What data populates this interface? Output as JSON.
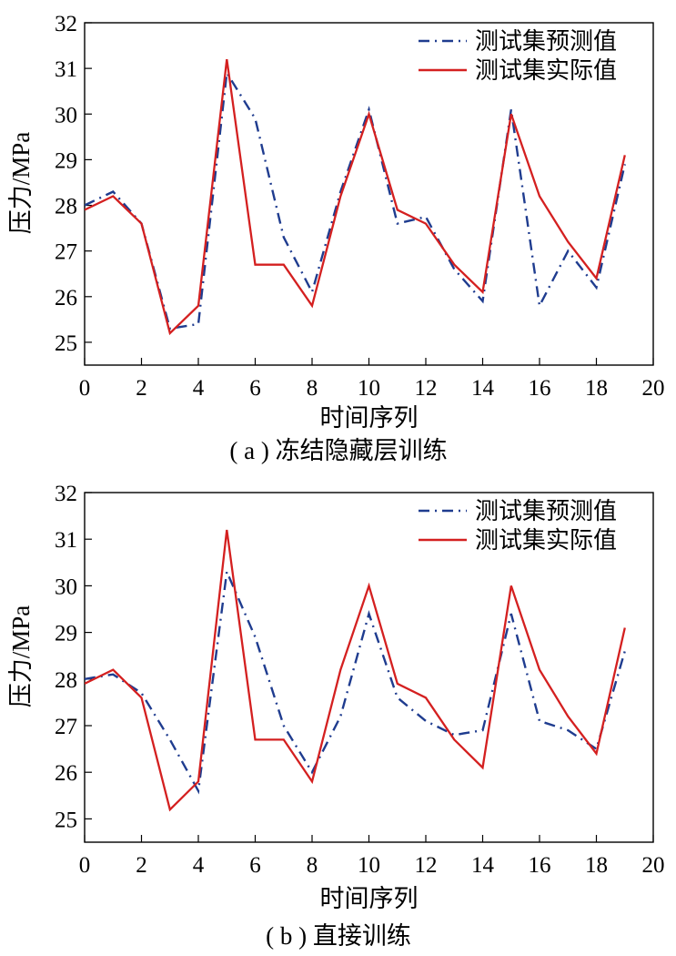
{
  "chart_data": [
    {
      "type": "line",
      "caption": "( a ) 冻结隐藏层训练",
      "xlabel": "时间序列",
      "ylabel": "压力/MPa",
      "xlim": [
        0,
        20
      ],
      "ylim": [
        24.5,
        32
      ],
      "xticks": [
        0,
        2,
        4,
        6,
        8,
        10,
        12,
        14,
        16,
        18,
        20
      ],
      "yticks": [
        25,
        26,
        27,
        28,
        29,
        30,
        31,
        32
      ],
      "grid": false,
      "legend_position": "top-right",
      "x": [
        0,
        1,
        2,
        3,
        4,
        5,
        6,
        7,
        8,
        9,
        10,
        11,
        12,
        13,
        14,
        15,
        16,
        17,
        18,
        19
      ],
      "series": [
        {
          "name": "测试集预测值",
          "color": "#1f3c8f",
          "style": "dash-dot",
          "values": [
            28.0,
            28.3,
            27.6,
            25.3,
            25.4,
            30.9,
            29.9,
            27.3,
            26.1,
            28.3,
            30.1,
            27.6,
            27.75,
            26.6,
            25.9,
            30.1,
            25.8,
            27.0,
            26.2,
            28.9
          ]
        },
        {
          "name": "测试集实际值",
          "color": "#d42020",
          "style": "solid",
          "values": [
            27.9,
            28.2,
            27.6,
            25.2,
            25.8,
            31.2,
            26.7,
            26.7,
            25.8,
            28.2,
            30.0,
            27.9,
            27.6,
            26.7,
            26.1,
            30.0,
            28.2,
            27.2,
            26.4,
            29.1
          ]
        }
      ]
    },
    {
      "type": "line",
      "caption": "( b ) 直接训练",
      "xlabel": "时间序列",
      "ylabel": "压力/MPa",
      "xlim": [
        0,
        20
      ],
      "ylim": [
        24.5,
        32
      ],
      "xticks": [
        0,
        2,
        4,
        6,
        8,
        10,
        12,
        14,
        16,
        18,
        20
      ],
      "yticks": [
        25,
        26,
        27,
        28,
        29,
        30,
        31,
        32
      ],
      "grid": false,
      "legend_position": "top-right",
      "x": [
        0,
        1,
        2,
        3,
        4,
        5,
        6,
        7,
        8,
        9,
        10,
        11,
        12,
        13,
        14,
        15,
        16,
        17,
        18,
        19
      ],
      "series": [
        {
          "name": "测试集预测值",
          "color": "#1f3c8f",
          "style": "dash-dot",
          "values": [
            28.0,
            28.1,
            27.7,
            26.7,
            25.6,
            30.3,
            28.9,
            27.0,
            26.0,
            27.2,
            29.4,
            27.6,
            27.1,
            26.8,
            26.9,
            29.4,
            27.1,
            26.9,
            26.5,
            28.6
          ]
        },
        {
          "name": "测试集实际值",
          "color": "#d42020",
          "style": "solid",
          "values": [
            27.9,
            28.2,
            27.6,
            25.2,
            25.8,
            31.2,
            26.7,
            26.7,
            25.8,
            28.2,
            30.0,
            27.9,
            27.6,
            26.7,
            26.1,
            30.0,
            28.2,
            27.2,
            26.4,
            29.1
          ]
        }
      ]
    }
  ]
}
